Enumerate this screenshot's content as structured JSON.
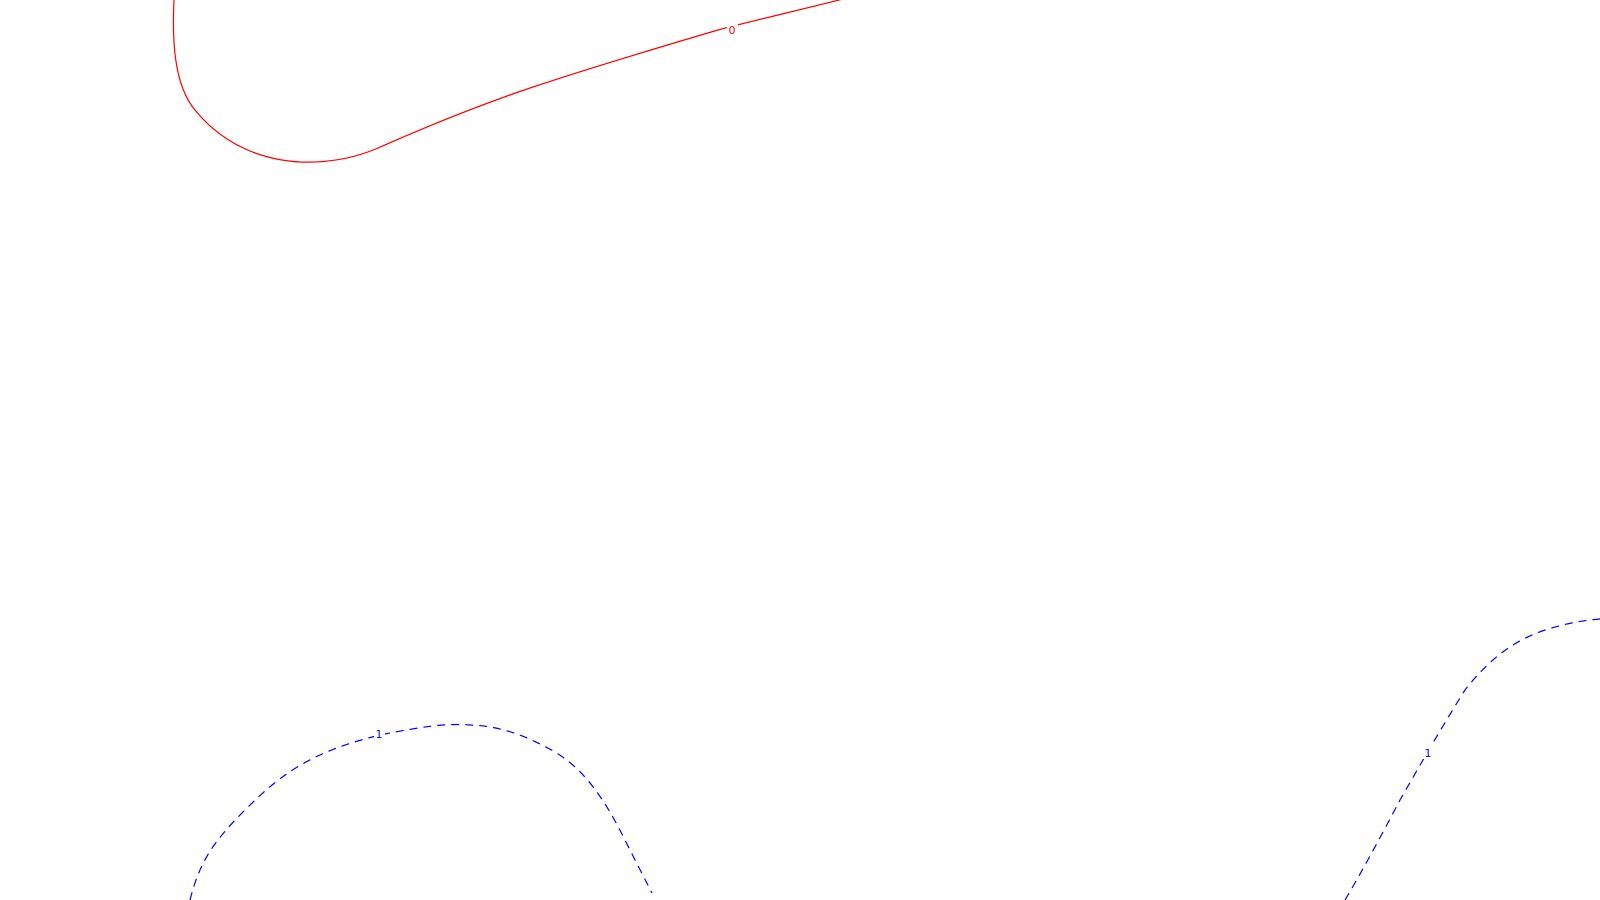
{
  "contours": [
    {
      "id": "zero",
      "label": "0",
      "color": "#ff0000",
      "style": "solid"
    },
    {
      "id": "one-left",
      "label": "1",
      "color": "#0000ff",
      "style": "dashed"
    },
    {
      "id": "one-right",
      "label": "1",
      "color": "#0000ff",
      "style": "dashed"
    }
  ]
}
